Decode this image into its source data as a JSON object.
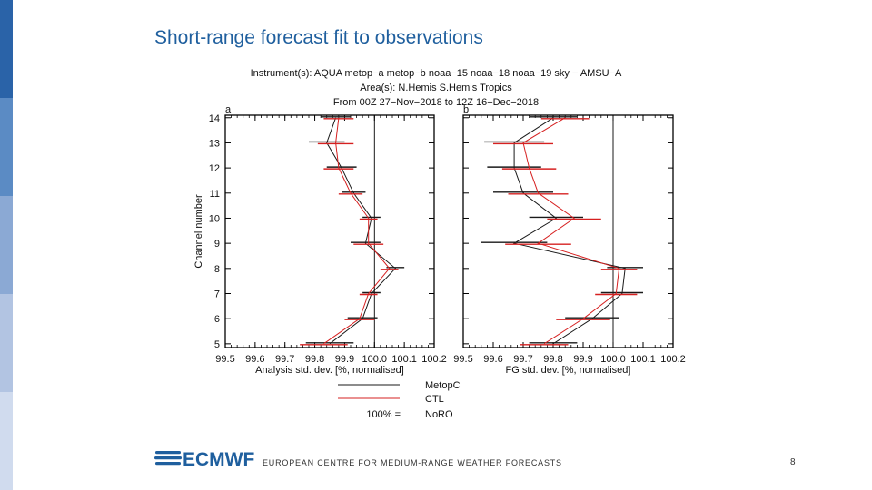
{
  "slide": {
    "title": "Short-range forecast fit to observations",
    "footer_org": "EUROPEAN CENTRE FOR MEDIUM-RANGE WEATHER FORECASTS",
    "logo_text": "ECMWF",
    "page_number": "8",
    "sidebar_colors": [
      "#2a63a8",
      "#5b8bc4",
      "#8ba9d4",
      "#b2c4e2",
      "#d0dbee"
    ],
    "accent_color": "#1f5f9e"
  },
  "chart_data": {
    "type": "line",
    "header_lines": [
      "Instrument(s): AQUA metop−a metop−b noaa−15 noaa−18 noaa−19 sky − AMSU−A",
      "Area(s): N.Hemis S.Hemis Tropics",
      "From 00Z 27−Nov−2018 to 12Z 16−Dec−2018"
    ],
    "ylabel": "Channel number",
    "ylim": [
      4.85,
      14.1
    ],
    "channels": [
      5,
      6,
      7,
      8,
      9,
      10,
      11,
      12,
      13,
      14
    ],
    "ytick_labels": [
      "5",
      "6",
      "7",
      "8",
      "9",
      "10",
      "11",
      "12",
      "13",
      "14"
    ],
    "xtick_labels": [
      "99.5",
      "99.6",
      "99.7",
      "99.8",
      "99.9",
      "100.0",
      "100.1",
      "100.2"
    ],
    "xticks": [
      99.5,
      99.6,
      99.7,
      99.8,
      99.9,
      100.0,
      100.1,
      100.2
    ],
    "reference_value": 100.0,
    "panels": [
      {
        "label": "a",
        "xlabel": "Analysis std. dev. [%, normalised]",
        "xlim": [
          99.5,
          100.2
        ],
        "series": [
          {
            "name": "MetopC",
            "color": "#1a1a1a",
            "values": [
              99.85,
              99.96,
              99.99,
              100.07,
              99.97,
              99.99,
              99.93,
              99.89,
              99.84,
              99.87
            ],
            "errors": [
              0.08,
              0.05,
              0.03,
              0.03,
              0.05,
              0.03,
              0.04,
              0.05,
              0.06,
              0.05
            ]
          },
          {
            "name": "CTL",
            "color": "#d62020",
            "values": [
              99.83,
              99.95,
              99.98,
              100.05,
              99.98,
              99.98,
              99.92,
              99.88,
              99.87,
              99.88
            ],
            "errors": [
              0.08,
              0.05,
              0.03,
              0.03,
              0.05,
              0.03,
              0.04,
              0.05,
              0.06,
              0.05
            ]
          }
        ]
      },
      {
        "label": "b",
        "xlabel": "FG std. dev. [%, normalised]",
        "xlim": [
          99.5,
          100.2
        ],
        "series": [
          {
            "name": "MetopC",
            "color": "#1a1a1a",
            "values": [
              99.8,
              99.93,
              100.03,
              100.04,
              99.67,
              99.81,
              99.7,
              99.67,
              99.67,
              99.8
            ],
            "errors": [
              0.08,
              0.09,
              0.07,
              0.06,
              0.11,
              0.09,
              0.1,
              0.09,
              0.1,
              0.08
            ]
          },
          {
            "name": "CTL",
            "color": "#d62020",
            "values": [
              99.77,
              99.9,
              100.01,
              100.02,
              99.75,
              99.87,
              99.75,
              99.72,
              99.7,
              99.84
            ],
            "errors": [
              0.08,
              0.09,
              0.07,
              0.06,
              0.11,
              0.09,
              0.1,
              0.09,
              0.1,
              0.08
            ]
          }
        ]
      }
    ],
    "legend": {
      "placement": "bottom-center",
      "entries": [
        {
          "name": "MetopC",
          "color": "#1a1a1a",
          "line": true
        },
        {
          "name": "CTL",
          "color": "#d62020",
          "line": true
        }
      ],
      "reference_prefix": "100% =",
      "reference_name": "NoRO"
    }
  }
}
